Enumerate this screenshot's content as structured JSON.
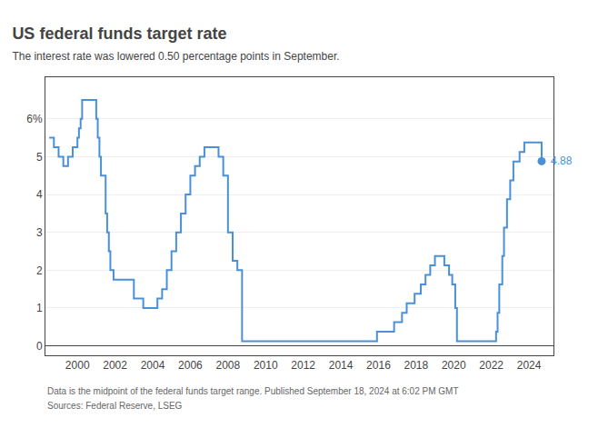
{
  "chart_data": {
    "type": "line",
    "line_style": "step",
    "title": "US federal funds target rate",
    "subtitle": "The interest rate was lowered 0.50 percentage points in September.",
    "footnotes": [
      "Data is the midpoint of the federal funds target range. Published September 18, 2024 at 6:02 PM GMT",
      "Sources: Federal Reserve, LSEG"
    ],
    "color": "#4a90d9",
    "grid": "y",
    "xlim": [
      1998.3,
      2025.3
    ],
    "xticks": [
      2000,
      2002,
      2004,
      2006,
      2008,
      2010,
      2012,
      2014,
      2016,
      2018,
      2020,
      2022,
      2024
    ],
    "ylim": [
      -0.25,
      7.1
    ],
    "yticks": [
      0,
      1,
      2,
      3,
      4,
      5,
      {
        "value": 6,
        "label": "6%"
      }
    ],
    "x": [
      1998.5,
      1998.75,
      1999.0,
      1999.25,
      1999.5,
      1999.75,
      2000.0,
      2000.08,
      2000.17,
      2000.25,
      2000.5,
      2001.0,
      2001.08,
      2001.17,
      2001.25,
      2001.5,
      2001.58,
      2001.67,
      2001.75,
      2001.92,
      2002.0,
      2002.5,
      2003.0,
      2003.5,
      2004.0,
      2004.25,
      2004.5,
      2004.75,
      2005.0,
      2005.25,
      2005.5,
      2005.75,
      2006.0,
      2006.25,
      2006.5,
      2006.75,
      2007.0,
      2007.25,
      2007.5,
      2007.75,
      2008.0,
      2008.25,
      2008.5,
      2008.75,
      2009.0,
      2010.0,
      2011.0,
      2012.0,
      2013.0,
      2014.0,
      2015.0,
      2015.92,
      2016.0,
      2016.83,
      2017.0,
      2017.25,
      2017.5,
      2017.92,
      2018.0,
      2018.25,
      2018.5,
      2018.75,
      2019.0,
      2019.25,
      2019.5,
      2019.75,
      2019.92,
      2020.0,
      2020.08,
      2020.17,
      2020.25,
      2021.0,
      2022.0,
      2022.25,
      2022.33,
      2022.42,
      2022.58,
      2022.67,
      2022.83,
      2023.0,
      2023.17,
      2023.5,
      2023.75,
      2024.0,
      2024.25,
      2024.58,
      2024.67
    ],
    "values": [
      5.5,
      5.25,
      5.0,
      4.75,
      5.0,
      5.25,
      5.5,
      5.75,
      6.0,
      6.5,
      6.5,
      6.0,
      5.5,
      5.0,
      4.5,
      3.5,
      3.0,
      2.5,
      2.0,
      1.75,
      1.75,
      1.75,
      1.25,
      1.0,
      1.0,
      1.25,
      1.5,
      2.0,
      2.5,
      3.0,
      3.5,
      4.0,
      4.5,
      4.75,
      5.0,
      5.25,
      5.25,
      5.25,
      5.0,
      4.5,
      3.0,
      2.25,
      2.0,
      0.125,
      0.125,
      0.125,
      0.125,
      0.125,
      0.125,
      0.125,
      0.125,
      0.375,
      0.375,
      0.625,
      0.625,
      0.875,
      1.125,
      1.375,
      1.375,
      1.625,
      1.875,
      2.125,
      2.375,
      2.375,
      2.125,
      1.875,
      1.625,
      1.625,
      1.0,
      0.125,
      0.125,
      0.125,
      0.125,
      0.375,
      0.875,
      1.625,
      2.375,
      3.125,
      3.875,
      4.375,
      4.875,
      5.125,
      5.375,
      5.375,
      5.375,
      5.375,
      4.875
    ],
    "annotations": [
      {
        "text": "4.88",
        "x": 2024.67,
        "y": 4.88,
        "color": "#4a90d9",
        "marker": "circle"
      }
    ]
  }
}
